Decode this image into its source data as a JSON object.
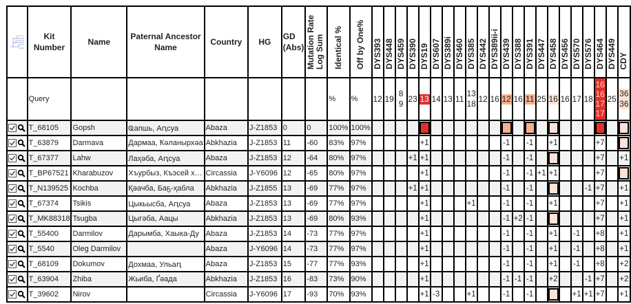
{
  "header": {
    "kit_number": "Kit Number",
    "name": "Name",
    "paternal_ancestor": "Paternal Ancestor Name",
    "country": "Country",
    "hg": "HG",
    "gd": "GD (Abs)",
    "mutation_rate": "Mutation Rate Log Sum",
    "identical": "Identical %",
    "off_by_one": "Off by One%",
    "markers": [
      "DYS393",
      "DYS448",
      "DYS459",
      "DYS390",
      "DYS19",
      "DYS607",
      "DYS389i",
      "DYS460",
      "DYS385",
      "DYS442",
      "DYS389ii-i",
      "DYS439",
      "DYS388",
      "DYS391",
      "DYS447",
      "DYS458",
      "DYS456",
      "DYS570",
      "DYS576",
      "DYS464",
      "DYS449",
      "CDY"
    ]
  },
  "query": {
    "label": "Query",
    "identical": "%",
    "off_by_one": "%",
    "values": [
      [
        "12"
      ],
      [
        "19"
      ],
      [
        "8",
        "9"
      ],
      [
        "23"
      ],
      [
        "13"
      ],
      [
        "14"
      ],
      [
        "13"
      ],
      [
        "11"
      ],
      [
        "13",
        "18"
      ],
      [
        "12"
      ],
      [
        "16"
      ],
      [
        "12"
      ],
      [
        "16"
      ],
      [
        "11"
      ],
      [
        "25"
      ],
      [
        "16"
      ],
      [
        "16"
      ],
      [
        "17"
      ],
      [
        "18"
      ],
      [
        "16",
        "16",
        "17",
        "17"
      ],
      [
        "25"
      ],
      [
        "36",
        "36"
      ]
    ],
    "highlight_colors": {
      "4": "#e0302a",
      "11": "#f9b08f",
      "13": "#f9b08f",
      "15": "#fde2d6",
      "19": "#e0302a",
      "21": "#fde2d6"
    }
  },
  "rows": [
    {
      "kit": "T_68105",
      "name": "Gopsh",
      "ancestor": "Ҩапшь, Аԥсуа",
      "country": "Abaza",
      "hg": "J-Z1853",
      "gd": "0",
      "mrls": "0",
      "identical": "100%",
      "off_by_one": "100%",
      "dys": [
        "",
        "",
        "",
        "",
        "",
        "",
        "",
        "",
        "",
        "",
        "",
        "",
        "",
        "",
        "",
        "",
        "",
        "",
        "",
        "",
        "",
        ""
      ],
      "boxed": [
        4,
        11,
        13,
        15,
        19,
        21
      ]
    },
    {
      "kit": "T_63879",
      "name": "Darmava",
      "ancestor": "Дармаа, Ҟәланырхәа",
      "country": "Abkhazia",
      "hg": "J-Z1853",
      "gd": "11",
      "mrls": "-60",
      "identical": "83%",
      "off_by_one": "97%",
      "dys": [
        "",
        "",
        "",
        "",
        "+1",
        "",
        "",
        "",
        "",
        "",
        "",
        "-1",
        "",
        "-1",
        "",
        "+1",
        "",
        "",
        "",
        "+7",
        "",
        ""
      ],
      "boxed": [
        21
      ]
    },
    {
      "kit": "T_67377",
      "name": "Lahw",
      "ancestor": "Лаҳәба, Аԥсуа",
      "country": "Abaza",
      "hg": "J-Z1853",
      "gd": "12",
      "mrls": "-64",
      "identical": "80%",
      "off_by_one": "97%",
      "dys": [
        "",
        "",
        "",
        "+1",
        "+1",
        "",
        "",
        "",
        "",
        "",
        "",
        "-1",
        "",
        "-1",
        "",
        "",
        "",
        "",
        "",
        "+7",
        "",
        "+1"
      ],
      "boxed": [
        15
      ]
    },
    {
      "kit": "T_BP67521",
      "name": "Kharabuzov",
      "ancestor": "Хъурбыз, Къэсей х…",
      "country": "Circassia",
      "hg": "J-Y6096",
      "gd": "12",
      "mrls": "-65",
      "identical": "80%",
      "off_by_one": "97%",
      "dys": [
        "",
        "",
        "",
        "",
        "+1",
        "",
        "",
        "",
        "",
        "",
        "",
        "-1",
        "",
        "-1",
        "+1",
        "+1",
        "",
        "",
        "",
        "+7",
        "",
        ""
      ],
      "boxed": [
        21
      ]
    },
    {
      "kit": "T_N139525",
      "name": "Kochba",
      "ancestor": "Қәачба, Баҕ-ҳабла",
      "country": "Abkhazia",
      "hg": "J-Z1855",
      "gd": "13",
      "mrls": "-69",
      "identical": "77%",
      "off_by_one": "97%",
      "dys": [
        "",
        "",
        "",
        "+1",
        "+1",
        "",
        "",
        "",
        "",
        "",
        "",
        "-1",
        "",
        "-1",
        "",
        "",
        "",
        "",
        "-1",
        "+7",
        "",
        "+1"
      ],
      "boxed": [
        15
      ]
    },
    {
      "kit": "T_67374",
      "name": "Tsikis",
      "ancestor": "Цыкьысба, Аԥсуа",
      "country": "Abaza",
      "hg": "J-Z1853",
      "gd": "13",
      "mrls": "-69",
      "identical": "77%",
      "off_by_one": "97%",
      "dys": [
        "",
        "",
        "",
        "",
        "+1",
        "",
        "",
        "",
        "+1",
        "",
        "",
        "-1",
        "",
        "-1",
        "",
        "+1",
        "",
        "",
        "",
        "+7",
        "",
        "+1"
      ],
      "boxed": []
    },
    {
      "kit": "T_MK88318",
      "name": "Tsugba",
      "ancestor": "Цыгәба, Аацы",
      "country": "Abkhazia",
      "hg": "J-Z1853",
      "gd": "13",
      "mrls": "-69",
      "identical": "80%",
      "off_by_one": "93%",
      "dys": [
        "",
        "",
        "",
        "",
        "+1",
        "",
        "",
        "",
        "",
        "",
        "",
        "-1",
        "+2",
        "-1",
        "",
        "",
        "",
        "",
        "",
        "+7",
        "",
        "+1"
      ],
      "boxed": [
        15
      ]
    },
    {
      "kit": "T_55400",
      "name": "Darmilov",
      "ancestor": "Дарымба, Хаыка-Ду",
      "country": "Abaza",
      "hg": "J-Z1853",
      "gd": "14",
      "mrls": "-73",
      "identical": "77%",
      "off_by_one": "97%",
      "dys": [
        "",
        "",
        "",
        "",
        "+1",
        "",
        "",
        "",
        "",
        "",
        "",
        "-1",
        "",
        "-1",
        "",
        "+1",
        "",
        "-1",
        "",
        "+8",
        "",
        "+1"
      ],
      "boxed": []
    },
    {
      "kit": "T_5540",
      "name": "Oleg Darmilov",
      "ancestor": "",
      "country": "Abaza",
      "hg": "J-Y6096",
      "gd": "14",
      "mrls": "-73",
      "identical": "77%",
      "off_by_one": "97%",
      "dys": [
        "",
        "",
        "",
        "",
        "+1",
        "",
        "",
        "",
        "",
        "",
        "",
        "-1",
        "",
        "-1",
        "",
        "+1",
        "",
        "-1",
        "",
        "+8",
        "",
        "+1"
      ],
      "boxed": []
    },
    {
      "kit": "T_68109",
      "name": "Dokumov",
      "ancestor": "Дохмаа, Ульаԥ",
      "country": "Abaza",
      "hg": "J-Z1853",
      "gd": "15",
      "mrls": "-77",
      "identical": "77%",
      "off_by_one": "93%",
      "dys": [
        "",
        "",
        "",
        "",
        "+1",
        "",
        "",
        "",
        "",
        "",
        "",
        "-1",
        "",
        "-1",
        "",
        "+1",
        "",
        "-1",
        "",
        "+8",
        "",
        "+2"
      ],
      "boxed": []
    },
    {
      "kit": "T_63904",
      "name": "Zhiba",
      "ancestor": "Жьиба, Ґәада",
      "country": "Abkhazia",
      "hg": "J-Z1853",
      "gd": "16",
      "mrls": "-83",
      "identical": "73%",
      "off_by_one": "90%",
      "dys": [
        "",
        "",
        "",
        "",
        "+1",
        "",
        "",
        "",
        "",
        "",
        "",
        "-1",
        "-1",
        "-1",
        "",
        "+2",
        "",
        "",
        "-1",
        "+7",
        "",
        "+2"
      ],
      "boxed": []
    },
    {
      "kit": "T_39602",
      "name": "Nirov",
      "ancestor": "",
      "country": "Circassia",
      "hg": "J-Y6096",
      "gd": "17",
      "mrls": "-93",
      "identical": "70%",
      "off_by_one": "93%",
      "dys": [
        "",
        "",
        "",
        "",
        "+1",
        "-3",
        "",
        "",
        "+1",
        "",
        "",
        "-1",
        "",
        "-1",
        "",
        "",
        "",
        "+1",
        "+1",
        "+7",
        "",
        "+1"
      ],
      "boxed": [
        15
      ]
    }
  ]
}
